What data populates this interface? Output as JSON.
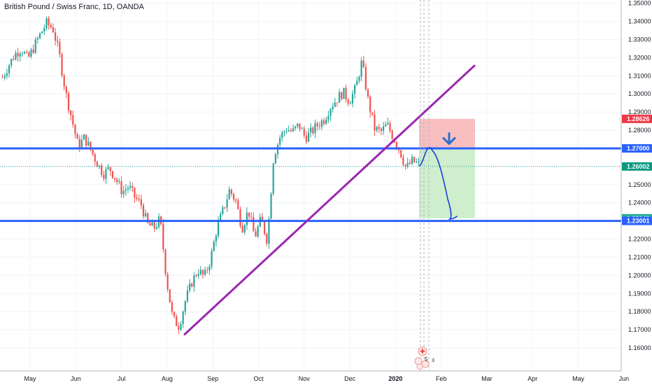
{
  "chart_data": {
    "type": "candlestick",
    "title": "British Pound / Swiss Franc, 1D, OANDA",
    "ylim": [
      1.155,
      1.351
    ],
    "y_ticks": [
      "1.35000",
      "1.34000",
      "1.33000",
      "1.32000",
      "1.31000",
      "1.30000",
      "1.29000",
      "1.28000",
      "1.27000",
      "1.26000",
      "1.25000",
      "1.24000",
      "1.23000",
      "1.22000",
      "1.21000",
      "1.20000",
      "1.19000",
      "1.18000",
      "1.17000",
      "1.16000"
    ],
    "x_ticks": [
      {
        "label": "May",
        "bold": false
      },
      {
        "label": "Jun",
        "bold": false
      },
      {
        "label": "Jul",
        "bold": false
      },
      {
        "label": "Aug",
        "bold": false
      },
      {
        "label": "Sep",
        "bold": false
      },
      {
        "label": "Oct",
        "bold": false
      },
      {
        "label": "Nov",
        "bold": false
      },
      {
        "label": "Dec",
        "bold": false
      },
      {
        "label": "2020",
        "bold": true
      },
      {
        "label": "Feb",
        "bold": false
      },
      {
        "label": "Mar",
        "bold": false
      },
      {
        "label": "Apr",
        "bold": false
      },
      {
        "label": "May",
        "bold": false
      },
      {
        "label": "Jun",
        "bold": false
      }
    ],
    "price_path": [
      1.309,
      1.316,
      1.322,
      1.325,
      1.319,
      1.326,
      1.333,
      1.339,
      1.336,
      1.322,
      1.301,
      1.286,
      1.271,
      1.276,
      1.269,
      1.262,
      1.256,
      1.259,
      1.253,
      1.246,
      1.249,
      1.243,
      1.239,
      1.228,
      1.226,
      1.231,
      1.198,
      1.176,
      1.172,
      1.186,
      1.196,
      1.203,
      1.199,
      1.209,
      1.226,
      1.236,
      1.247,
      1.241,
      1.226,
      1.236,
      1.221,
      1.231,
      1.219,
      1.266,
      1.276,
      1.281,
      1.279,
      1.283,
      1.276,
      1.279,
      1.283,
      1.286,
      1.293,
      1.297,
      1.301,
      1.296,
      1.303,
      1.318,
      1.296,
      1.281,
      1.279,
      1.283,
      1.276,
      1.269,
      1.259,
      1.263,
      1.261
    ],
    "current_price": "1.26002",
    "levels": [
      {
        "name": "resistance",
        "value": 1.27,
        "label": "1.27000",
        "color": "#2962ff"
      },
      {
        "name": "support",
        "value": 1.23001,
        "label": "1.23001",
        "color": "#2962ff"
      }
    ],
    "price_tags": [
      {
        "label": "1.28626",
        "value": 1.28626,
        "color": "#f23645",
        "text": "light"
      },
      {
        "label": "1.26996",
        "value": 1.26996,
        "color": "#e0e3eb",
        "text": "dark"
      },
      {
        "label": "1.26002",
        "value": 1.26002,
        "color": "#089981",
        "text": "light"
      },
      {
        "label": "1.23146",
        "value": 1.23146,
        "color": "#22ab94",
        "text": "light"
      }
    ],
    "position": {
      "stop": 1.28626,
      "entry": 1.26996,
      "target": 1.23146
    },
    "trendline": {
      "start": 1.1675,
      "end": 1.3155,
      "color": "#9c27b0"
    },
    "colors": {
      "up": "#26a69a",
      "down": "#ef5350",
      "grid": "#f0f3fa",
      "stop_zone": "#f7b3b5",
      "target_zone": "#c6ebc4",
      "forecast": "#1a3fd8",
      "arrow": "#2b6ed1"
    },
    "grid": true
  },
  "events": {
    "badge_count": "5",
    "badge_extra": "3"
  }
}
